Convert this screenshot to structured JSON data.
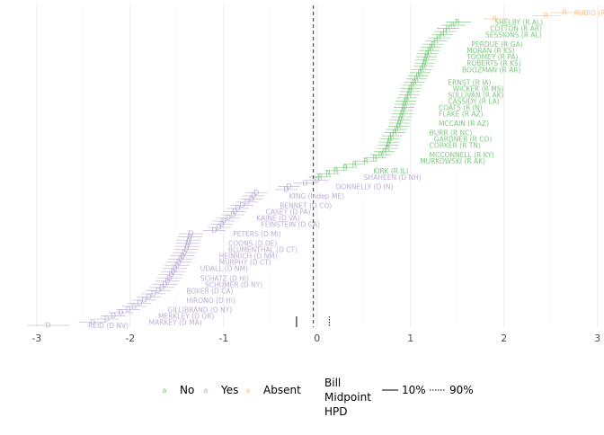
{
  "chart_data": {
    "type": "scatter",
    "title": "",
    "xlabel": "",
    "ylabel": "",
    "xlim": [
      -3.2,
      3.05
    ],
    "xticks": [
      -3,
      -2,
      -1,
      0,
      1,
      2,
      3
    ],
    "grid": true,
    "legend_placement": "bottom",
    "colors": {
      "No": "#7dc97f",
      "Yes": "#beaed4",
      "Absent": "#fdc086"
    },
    "marker_letters": {
      "No": "R",
      "Yes": "D",
      "Absent": "R"
    },
    "bill_midpoint": {
      "estimate": -0.04,
      "hpd_low": -0.22,
      "hpd_high": 0.13
    },
    "legend": {
      "vote_items": [
        {
          "key": "No",
          "glyph": "a",
          "label": "No"
        },
        {
          "key": "Yes",
          "glyph": "a",
          "label": "Yes"
        },
        {
          "key": "Absent",
          "glyph": "a",
          "label": "Absent"
        }
      ],
      "midpoint_title": [
        "Bill",
        "Midpoint",
        "HPD"
      ],
      "midpoint_items": [
        {
          "style": "solid",
          "label": "10%"
        },
        {
          "style": "dotted",
          "label": "90%"
        }
      ]
    },
    "labels": [
      {
        "name": "RUBIO (R FL)",
        "vote": "Absent",
        "x": 2.75,
        "rank": 1
      },
      {
        "name": "SHELBY (R AL)",
        "vote": "No",
        "x": 1.9,
        "rank": 4
      },
      {
        "name": "COTTON (R AR)",
        "vote": "No",
        "x": 1.85,
        "rank": 6
      },
      {
        "name": "SESSIONS (R AL)",
        "vote": "No",
        "x": 1.8,
        "rank": 8
      },
      {
        "name": "PERDUE (R GA)",
        "vote": "No",
        "x": 1.65,
        "rank": 11
      },
      {
        "name": "MORAN (R KS)",
        "vote": "No",
        "x": 1.6,
        "rank": 13
      },
      {
        "name": "TOOMEY (R PA)",
        "vote": "No",
        "x": 1.6,
        "rank": 15
      },
      {
        "name": "ROBERTS (R KS)",
        "vote": "No",
        "x": 1.6,
        "rank": 17
      },
      {
        "name": "BOOZMAN (R AR)",
        "vote": "No",
        "x": 1.55,
        "rank": 19
      },
      {
        "name": "ERNST (R IA)",
        "vote": "No",
        "x": 1.4,
        "rank": 23
      },
      {
        "name": "WICKER (R MS)",
        "vote": "No",
        "x": 1.45,
        "rank": 25
      },
      {
        "name": "SULLIVAN (R AK)",
        "vote": "No",
        "x": 1.4,
        "rank": 27
      },
      {
        "name": "CASSIDY (R LA)",
        "vote": "No",
        "x": 1.4,
        "rank": 29
      },
      {
        "name": "COATS (R IN)",
        "vote": "No",
        "x": 1.3,
        "rank": 31
      },
      {
        "name": "FLAKE (R AZ)",
        "vote": "No",
        "x": 1.3,
        "rank": 33
      },
      {
        "name": "MCCAIN (R AZ)",
        "vote": "No",
        "x": 1.3,
        "rank": 36
      },
      {
        "name": "BURR (R NC)",
        "vote": "No",
        "x": 1.2,
        "rank": 39
      },
      {
        "name": "GARDNER (R CO)",
        "vote": "No",
        "x": 1.25,
        "rank": 41
      },
      {
        "name": "CORKER (R TN)",
        "vote": "No",
        "x": 1.2,
        "rank": 43
      },
      {
        "name": "MCCONNELL (R KY)",
        "vote": "No",
        "x": 1.2,
        "rank": 46
      },
      {
        "name": "MURKOWSKI (R AK)",
        "vote": "No",
        "x": 1.1,
        "rank": 48
      },
      {
        "name": "KIRK (R IL)",
        "vote": "No",
        "x": 0.6,
        "rank": 51
      },
      {
        "name": "SHAHEEN (D NH)",
        "vote": "Yes",
        "x": 0.5,
        "rank": 53
      },
      {
        "name": "DONNELLY (D IN)",
        "vote": "Yes",
        "x": 0.2,
        "rank": 56
      },
      {
        "name": "KING (Indep ME)",
        "vote": "Yes",
        "x": -0.3,
        "rank": 59
      },
      {
        "name": "BENNET (D CO)",
        "vote": "Yes",
        "x": -0.4,
        "rank": 62
      },
      {
        "name": "CASEY (D PA)",
        "vote": "Yes",
        "x": -0.55,
        "rank": 64
      },
      {
        "name": "KAINE (D VA)",
        "vote": "Yes",
        "x": -0.65,
        "rank": 66
      },
      {
        "name": "FEINSTEIN (D CA)",
        "vote": "Yes",
        "x": -0.6,
        "rank": 68
      },
      {
        "name": "PETERS (D MI)",
        "vote": "Yes",
        "x": -0.9,
        "rank": 71
      },
      {
        "name": "COONS (D DE)",
        "vote": "Yes",
        "x": -0.95,
        "rank": 74
      },
      {
        "name": "BLUMENTHAL (D CT)",
        "vote": "Yes",
        "x": -0.95,
        "rank": 76
      },
      {
        "name": "HEINRICH (D NM)",
        "vote": "Yes",
        "x": -1.05,
        "rank": 78
      },
      {
        "name": "MURPHY (D CT)",
        "vote": "Yes",
        "x": -1.05,
        "rank": 80
      },
      {
        "name": "UDALL (D NM)",
        "vote": "Yes",
        "x": -1.25,
        "rank": 82
      },
      {
        "name": "SCHATZ (D HI)",
        "vote": "Yes",
        "x": -1.25,
        "rank": 85
      },
      {
        "name": "SCHUMER (D NY)",
        "vote": "Yes",
        "x": -1.2,
        "rank": 87
      },
      {
        "name": "BOXER (D CA)",
        "vote": "Yes",
        "x": -1.4,
        "rank": 89
      },
      {
        "name": "HIRONO (D HI)",
        "vote": "Yes",
        "x": -1.4,
        "rank": 92
      },
      {
        "name": "GILLIBRAND (D NY)",
        "vote": "Yes",
        "x": -1.6,
        "rank": 95
      },
      {
        "name": "MERKLEY (D OR)",
        "vote": "Yes",
        "x": -1.7,
        "rank": 97
      },
      {
        "name": "MARKEY (D MA)",
        "vote": "Yes",
        "x": -1.8,
        "rank": 99
      },
      {
        "name": "REID (D NV)",
        "vote": "Yes",
        "x": -2.45,
        "rank": 100
      }
    ],
    "series": [
      {
        "name": "Absent",
        "points": [
          {
            "rank": 1,
            "x": 2.65,
            "lo": 2.5,
            "hi": 2.85
          },
          {
            "rank": 2,
            "x": 2.45,
            "lo": 2.3,
            "hi": 2.6
          },
          {
            "rank": 3,
            "x": 1.9,
            "lo": 1.78,
            "hi": 2.05
          }
        ]
      },
      {
        "name": "No",
        "points": [
          {
            "rank": 4,
            "x": 1.5,
            "lo": 1.38,
            "hi": 1.65
          },
          {
            "rank": 5,
            "x": 1.45,
            "lo": 1.33,
            "hi": 1.58
          },
          {
            "rank": 6,
            "x": 1.4,
            "lo": 1.28,
            "hi": 1.52
          },
          {
            "rank": 7,
            "x": 1.37,
            "lo": 1.25,
            "hi": 1.49
          },
          {
            "rank": 8,
            "x": 1.34,
            "lo": 1.23,
            "hi": 1.46
          },
          {
            "rank": 9,
            "x": 1.3,
            "lo": 1.19,
            "hi": 1.42
          },
          {
            "rank": 10,
            "x": 1.27,
            "lo": 1.16,
            "hi": 1.39
          },
          {
            "rank": 11,
            "x": 1.24,
            "lo": 1.13,
            "hi": 1.35
          },
          {
            "rank": 12,
            "x": 1.22,
            "lo": 1.11,
            "hi": 1.33
          },
          {
            "rank": 13,
            "x": 1.2,
            "lo": 1.09,
            "hi": 1.31
          },
          {
            "rank": 14,
            "x": 1.18,
            "lo": 1.07,
            "hi": 1.29
          },
          {
            "rank": 15,
            "x": 1.17,
            "lo": 1.06,
            "hi": 1.28
          },
          {
            "rank": 16,
            "x": 1.16,
            "lo": 1.05,
            "hi": 1.27
          },
          {
            "rank": 17,
            "x": 1.15,
            "lo": 1.04,
            "hi": 1.26
          },
          {
            "rank": 18,
            "x": 1.14,
            "lo": 1.03,
            "hi": 1.25
          },
          {
            "rank": 19,
            "x": 1.12,
            "lo": 1.01,
            "hi": 1.23
          },
          {
            "rank": 20,
            "x": 1.1,
            "lo": 0.99,
            "hi": 1.21
          },
          {
            "rank": 21,
            "x": 1.08,
            "lo": 0.97,
            "hi": 1.19
          },
          {
            "rank": 22,
            "x": 1.06,
            "lo": 0.95,
            "hi": 1.17
          },
          {
            "rank": 23,
            "x": 1.04,
            "lo": 0.93,
            "hi": 1.15
          },
          {
            "rank": 24,
            "x": 1.02,
            "lo": 0.91,
            "hi": 1.13
          },
          {
            "rank": 25,
            "x": 1.0,
            "lo": 0.89,
            "hi": 1.11
          },
          {
            "rank": 26,
            "x": 0.99,
            "lo": 0.88,
            "hi": 1.1
          },
          {
            "rank": 27,
            "x": 0.98,
            "lo": 0.87,
            "hi": 1.09
          },
          {
            "rank": 28,
            "x": 0.96,
            "lo": 0.85,
            "hi": 1.07
          },
          {
            "rank": 29,
            "x": 0.95,
            "lo": 0.84,
            "hi": 1.06
          },
          {
            "rank": 30,
            "x": 0.94,
            "lo": 0.83,
            "hi": 1.05
          },
          {
            "rank": 31,
            "x": 0.93,
            "lo": 0.82,
            "hi": 1.04
          },
          {
            "rank": 32,
            "x": 0.92,
            "lo": 0.81,
            "hi": 1.03
          },
          {
            "rank": 33,
            "x": 0.91,
            "lo": 0.8,
            "hi": 1.02
          },
          {
            "rank": 34,
            "x": 0.9,
            "lo": 0.79,
            "hi": 1.01
          },
          {
            "rank": 35,
            "x": 0.89,
            "lo": 0.78,
            "hi": 1.0
          },
          {
            "rank": 36,
            "x": 0.88,
            "lo": 0.77,
            "hi": 0.99
          },
          {
            "rank": 37,
            "x": 0.87,
            "lo": 0.76,
            "hi": 0.98
          },
          {
            "rank": 38,
            "x": 0.85,
            "lo": 0.74,
            "hi": 0.96
          },
          {
            "rank": 39,
            "x": 0.83,
            "lo": 0.72,
            "hi": 0.94
          },
          {
            "rank": 40,
            "x": 0.8,
            "lo": 0.69,
            "hi": 0.91
          },
          {
            "rank": 41,
            "x": 0.78,
            "lo": 0.67,
            "hi": 0.89
          },
          {
            "rank": 42,
            "x": 0.77,
            "lo": 0.66,
            "hi": 0.88
          },
          {
            "rank": 43,
            "x": 0.76,
            "lo": 0.65,
            "hi": 0.87
          },
          {
            "rank": 44,
            "x": 0.75,
            "lo": 0.64,
            "hi": 0.86
          },
          {
            "rank": 45,
            "x": 0.72,
            "lo": 0.61,
            "hi": 0.83
          },
          {
            "rank": 46,
            "x": 0.68,
            "lo": 0.57,
            "hi": 0.79
          },
          {
            "rank": 47,
            "x": 0.62,
            "lo": 0.5,
            "hi": 0.74
          },
          {
            "rank": 48,
            "x": 0.52,
            "lo": 0.4,
            "hi": 0.64
          },
          {
            "rank": 49,
            "x": 0.4,
            "lo": 0.28,
            "hi": 0.52
          },
          {
            "rank": 50,
            "x": 0.3,
            "lo": 0.18,
            "hi": 0.42
          },
          {
            "rank": 51,
            "x": 0.2,
            "lo": 0.08,
            "hi": 0.32
          },
          {
            "rank": 52,
            "x": 0.12,
            "lo": 0.0,
            "hi": 0.24
          },
          {
            "rank": 53,
            "x": 0.03,
            "lo": -0.09,
            "hi": 0.15
          }
        ]
      },
      {
        "name": "Yes",
        "points": [
          {
            "rank": 54,
            "x": 0.0,
            "lo": -0.12,
            "hi": 0.12
          },
          {
            "rank": 55,
            "x": -0.13,
            "lo": -0.25,
            "hi": -0.01
          },
          {
            "rank": 56,
            "x": -0.3,
            "lo": -0.42,
            "hi": -0.18
          },
          {
            "rank": 57,
            "x": -0.33,
            "lo": -0.45,
            "hi": -0.21
          },
          {
            "rank": 58,
            "x": -0.65,
            "lo": -0.77,
            "hi": -0.53
          },
          {
            "rank": 59,
            "x": -0.68,
            "lo": -0.8,
            "hi": -0.56
          },
          {
            "rank": 60,
            "x": -0.7,
            "lo": -0.82,
            "hi": -0.58
          },
          {
            "rank": 61,
            "x": -0.75,
            "lo": -0.87,
            "hi": -0.63
          },
          {
            "rank": 62,
            "x": -0.8,
            "lo": -0.92,
            "hi": -0.68
          },
          {
            "rank": 63,
            "x": -0.85,
            "lo": -0.97,
            "hi": -0.73
          },
          {
            "rank": 64,
            "x": -0.88,
            "lo": -1.0,
            "hi": -0.76
          },
          {
            "rank": 65,
            "x": -0.9,
            "lo": -1.02,
            "hi": -0.78
          },
          {
            "rank": 66,
            "x": -0.95,
            "lo": -1.07,
            "hi": -0.83
          },
          {
            "rank": 67,
            "x": -1.0,
            "lo": -1.12,
            "hi": -0.88
          },
          {
            "rank": 68,
            "x": -1.02,
            "lo": -1.14,
            "hi": -0.9
          },
          {
            "rank": 69,
            "x": -1.05,
            "lo": -1.17,
            "hi": -0.93
          },
          {
            "rank": 70,
            "x": -1.1,
            "lo": -1.22,
            "hi": -0.98
          },
          {
            "rank": 71,
            "x": -1.35,
            "lo": -1.48,
            "hi": -1.22
          },
          {
            "rank": 72,
            "x": -1.36,
            "lo": -1.49,
            "hi": -1.23
          },
          {
            "rank": 73,
            "x": -1.37,
            "lo": -1.5,
            "hi": -1.24
          },
          {
            "rank": 74,
            "x": -1.38,
            "lo": -1.51,
            "hi": -1.25
          },
          {
            "rank": 75,
            "x": -1.39,
            "lo": -1.52,
            "hi": -1.26
          },
          {
            "rank": 76,
            "x": -1.4,
            "lo": -1.53,
            "hi": -1.27
          },
          {
            "rank": 77,
            "x": -1.42,
            "lo": -1.55,
            "hi": -1.29
          },
          {
            "rank": 78,
            "x": -1.44,
            "lo": -1.57,
            "hi": -1.31
          },
          {
            "rank": 79,
            "x": -1.46,
            "lo": -1.59,
            "hi": -1.33
          },
          {
            "rank": 80,
            "x": -1.48,
            "lo": -1.61,
            "hi": -1.35
          },
          {
            "rank": 81,
            "x": -1.5,
            "lo": -1.63,
            "hi": -1.37
          },
          {
            "rank": 82,
            "x": -1.52,
            "lo": -1.65,
            "hi": -1.39
          },
          {
            "rank": 83,
            "x": -1.54,
            "lo": -1.67,
            "hi": -1.41
          },
          {
            "rank": 84,
            "x": -1.56,
            "lo": -1.69,
            "hi": -1.43
          },
          {
            "rank": 85,
            "x": -1.58,
            "lo": -1.71,
            "hi": -1.45
          },
          {
            "rank": 86,
            "x": -1.6,
            "lo": -1.73,
            "hi": -1.47
          },
          {
            "rank": 87,
            "x": -1.63,
            "lo": -1.76,
            "hi": -1.5
          },
          {
            "rank": 88,
            "x": -1.66,
            "lo": -1.79,
            "hi": -1.53
          },
          {
            "rank": 89,
            "x": -1.7,
            "lo": -1.83,
            "hi": -1.57
          },
          {
            "rank": 90,
            "x": -1.75,
            "lo": -1.88,
            "hi": -1.62
          },
          {
            "rank": 91,
            "x": -1.8,
            "lo": -1.93,
            "hi": -1.67
          },
          {
            "rank": 92,
            "x": -1.85,
            "lo": -1.98,
            "hi": -1.72
          },
          {
            "rank": 93,
            "x": -1.9,
            "lo": -2.03,
            "hi": -1.77
          },
          {
            "rank": 94,
            "x": -1.96,
            "lo": -2.09,
            "hi": -1.83
          },
          {
            "rank": 95,
            "x": -2.02,
            "lo": -2.15,
            "hi": -1.89
          },
          {
            "rank": 96,
            "x": -2.1,
            "lo": -2.23,
            "hi": -1.97
          },
          {
            "rank": 97,
            "x": -2.18,
            "lo": -2.31,
            "hi": -2.05
          },
          {
            "rank": 98,
            "x": -2.25,
            "lo": -2.38,
            "hi": -2.12
          },
          {
            "rank": 99,
            "x": -2.4,
            "lo": -2.55,
            "hi": -2.25
          },
          {
            "rank": 100,
            "x": -2.88,
            "lo": -3.1,
            "hi": -2.65
          }
        ]
      }
    ]
  }
}
